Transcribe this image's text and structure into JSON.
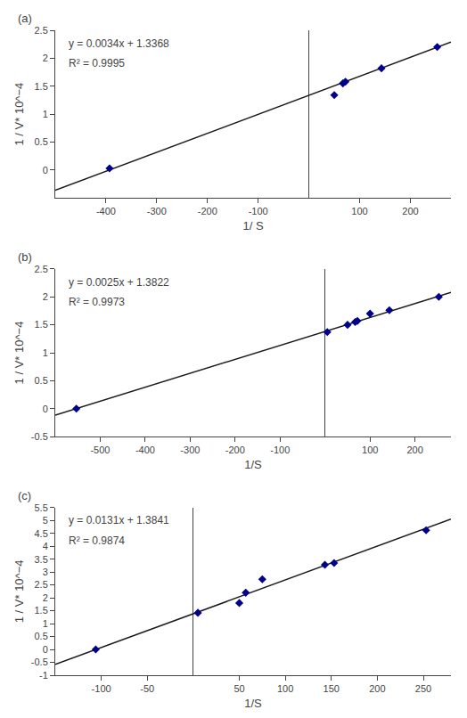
{
  "chart_data": [
    {
      "type": "scatter",
      "title": "(a)",
      "xlabel": "1/ S",
      "ylabel": "1 / V* 10^−4",
      "annotations": [
        "y = 0.0034x + 1.3368",
        "R² = 0.9995"
      ],
      "series": [
        {
          "type": "line",
          "line_style": "solid",
          "color": "#1a1a1a",
          "x": [
            -500,
            280
          ],
          "values": [
            -0.3632,
            2.2888
          ]
        },
        {
          "type": "scatter",
          "marker": "diamond",
          "color": "#00008B",
          "x": [
            -393,
            50,
            67,
            72,
            143,
            253
          ],
          "values": [
            0.03,
            1.34,
            1.55,
            1.58,
            1.82,
            2.2
          ]
        }
      ],
      "xlim": [
        -500,
        280
      ],
      "xticks": [
        -400,
        -300,
        -200,
        -100,
        100,
        200
      ],
      "ylim": [
        -0.5,
        2.5
      ],
      "yticks": [
        0,
        0.5,
        1,
        1.5,
        2,
        2.5
      ],
      "grid": false
    },
    {
      "type": "scatter",
      "title": "(b)",
      "xlabel": "1/S",
      "ylabel": "1 / V* 10^−4",
      "annotations": [
        "y = 0.0025x + 1.3822",
        "R² = 0.9973"
      ],
      "series": [
        {
          "type": "line",
          "line_style": "solid",
          "color": "#1a1a1a",
          "x": [
            -600,
            280
          ],
          "values": [
            -0.1178,
            2.0822
          ]
        },
        {
          "type": "scatter",
          "marker": "diamond",
          "color": "#00008B",
          "x": [
            -553,
            5,
            50,
            67,
            72,
            100,
            143,
            253
          ],
          "values": [
            0.0,
            1.37,
            1.5,
            1.55,
            1.57,
            1.7,
            1.76,
            2.0
          ]
        }
      ],
      "xlim": [
        -600,
        280
      ],
      "xticks": [
        -500,
        -400,
        -300,
        -200,
        -100,
        100,
        200
      ],
      "ylim": [
        -0.5,
        2.5
      ],
      "yticks": [
        -0.5,
        0,
        0.5,
        1,
        1.5,
        2,
        2.5
      ],
      "grid": false
    },
    {
      "type": "scatter",
      "title": "(c)",
      "xlabel": "1/S",
      "ylabel": "1 / V* 10^−4",
      "annotations": [
        "y = 0.0131x + 1.3841",
        "R² = 0.9874"
      ],
      "series": [
        {
          "type": "line",
          "line_style": "solid",
          "color": "#1a1a1a",
          "x": [
            -150,
            280
          ],
          "values": [
            -0.5809,
            5.0521
          ]
        },
        {
          "type": "scatter",
          "marker": "diamond",
          "color": "#00008B",
          "x": [
            -106,
            5,
            50,
            57,
            75,
            143,
            153,
            253
          ],
          "values": [
            0.0,
            1.42,
            1.8,
            2.2,
            2.72,
            3.28,
            3.35,
            4.62
          ]
        }
      ],
      "xlim": [
        -150,
        280
      ],
      "xticks": [
        -100,
        -50,
        50,
        100,
        150,
        200,
        250
      ],
      "ylim": [
        -1,
        5.5
      ],
      "yticks": [
        -1,
        -0.5,
        0,
        0.5,
        1,
        1.5,
        2,
        2.5,
        3,
        3.5,
        4,
        4.5,
        5,
        5.5
      ],
      "grid": false
    }
  ]
}
